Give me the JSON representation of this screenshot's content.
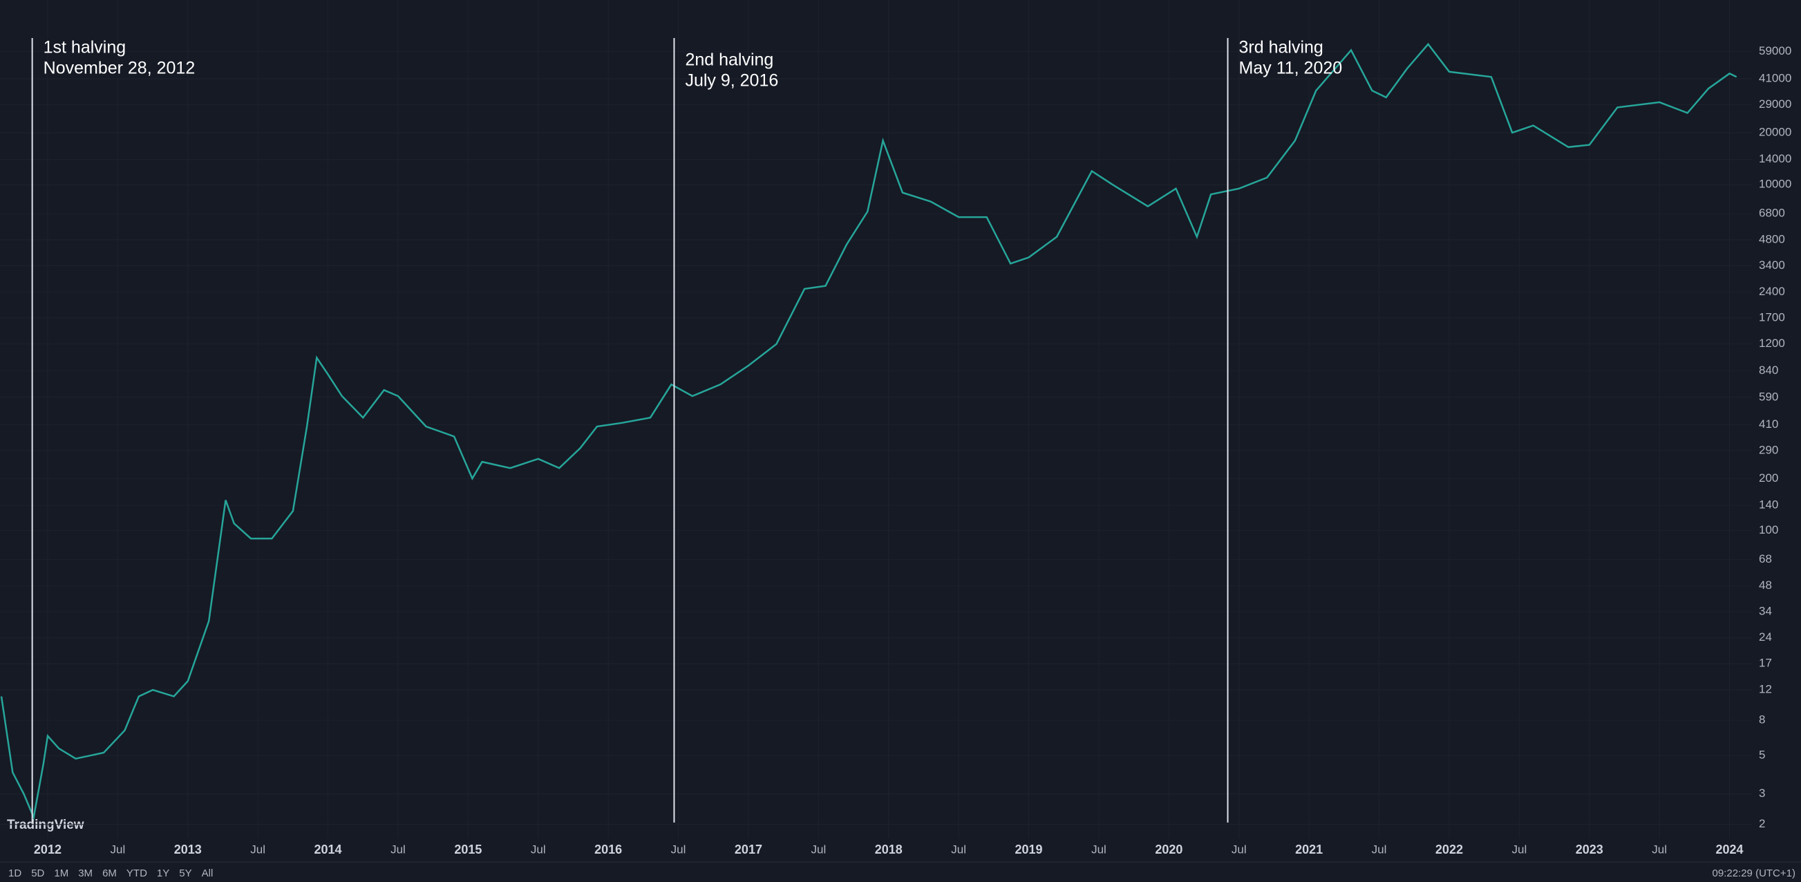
{
  "chart_data": {
    "type": "line",
    "log_scale": true,
    "grid": true,
    "color": "#26a69a",
    "x": [
      2011.67,
      2011.75,
      2011.83,
      2011.9,
      2011.97,
      2012.0,
      2012.08,
      2012.2,
      2012.4,
      2012.55,
      2012.65,
      2012.75,
      2012.9,
      2013.0,
      2013.15,
      2013.27,
      2013.33,
      2013.45,
      2013.6,
      2013.75,
      2013.85,
      2013.92,
      2014.0,
      2014.1,
      2014.25,
      2014.4,
      2014.5,
      2014.7,
      2014.9,
      2015.03,
      2015.1,
      2015.3,
      2015.5,
      2015.65,
      2015.8,
      2015.92,
      2016.1,
      2016.3,
      2016.45,
      2016.6,
      2016.8,
      2017.0,
      2017.2,
      2017.4,
      2017.55,
      2017.7,
      2017.85,
      2017.96,
      2018.1,
      2018.3,
      2018.5,
      2018.7,
      2018.87,
      2019.0,
      2019.2,
      2019.45,
      2019.6,
      2019.85,
      2020.05,
      2020.2,
      2020.3,
      2020.5,
      2020.7,
      2020.9,
      2021.05,
      2021.3,
      2021.45,
      2021.55,
      2021.7,
      2021.85,
      2022.0,
      2022.3,
      2022.45,
      2022.6,
      2022.85,
      2023.0,
      2023.2,
      2023.5,
      2023.7,
      2023.85,
      2024.0,
      2024.05
    ],
    "values": [
      11,
      4,
      3,
      2.2,
      4.5,
      6.5,
      5.5,
      4.8,
      5.2,
      7,
      11,
      12,
      11,
      13.5,
      30,
      150,
      110,
      90,
      90,
      130,
      400,
      1000,
      800,
      600,
      450,
      650,
      600,
      400,
      350,
      200,
      250,
      230,
      260,
      230,
      300,
      400,
      420,
      450,
      700,
      600,
      700,
      900,
      1200,
      2500,
      2600,
      4500,
      7000,
      18000,
      9000,
      8000,
      6500,
      6500,
      3500,
      3800,
      5000,
      12000,
      10000,
      7500,
      9500,
      5000,
      8800,
      9500,
      11000,
      18000,
      35000,
      60000,
      35000,
      32000,
      47000,
      65000,
      45000,
      42000,
      20000,
      22000,
      16500,
      17000,
      28000,
      30000,
      26000,
      36000,
      44000,
      42000
    ],
    "xlim": [
      2011.66,
      2024.16
    ],
    "ylim": [
      1.66,
      117000
    ],
    "xticks": [
      2012,
      {
        "value": 2012.5,
        "label": "Jul"
      },
      2013,
      {
        "value": 2013.5,
        "label": "Jul"
      },
      2014,
      {
        "value": 2014.5,
        "label": "Jul"
      },
      2015,
      {
        "value": 2015.5,
        "label": "Jul"
      },
      2016,
      {
        "value": 2016.5,
        "label": "Jul"
      },
      2017,
      {
        "value": 2017.5,
        "label": "Jul"
      },
      2018,
      {
        "value": 2018.5,
        "label": "Jul"
      },
      2019,
      {
        "value": 2019.5,
        "label": "Jul"
      },
      2020,
      {
        "value": 2020.5,
        "label": "Jul"
      },
      2021,
      {
        "value": 2021.5,
        "label": "Jul"
      },
      2022,
      {
        "value": 2022.5,
        "label": "Jul"
      },
      2023,
      {
        "value": 2023.5,
        "label": "Jul"
      },
      2024
    ],
    "yticks": [
      2,
      3,
      5,
      8,
      12,
      17,
      24,
      34,
      48,
      68,
      100,
      140,
      200,
      290,
      410,
      590,
      840,
      1200,
      1700,
      2400,
      3400,
      4800,
      6800,
      10000,
      14000,
      20000,
      29000,
      41000,
      59000
    ],
    "annotations": [
      {
        "label": "1st halving",
        "date": "November 28, 2012",
        "x": 2011.89
      },
      {
        "label": "2nd halving",
        "date": "July 9, 2016",
        "x": 2016.47
      },
      {
        "label": "3rd halving",
        "date": "May 11, 2020",
        "x": 2020.42
      }
    ]
  },
  "brand": "TradingView",
  "toolbar": {
    "ranges": [
      "1D",
      "5D",
      "1M",
      "3M",
      "6M",
      "YTD",
      "1Y",
      "5Y",
      "All"
    ],
    "clock": "09:22:29 (UTC+1)"
  }
}
